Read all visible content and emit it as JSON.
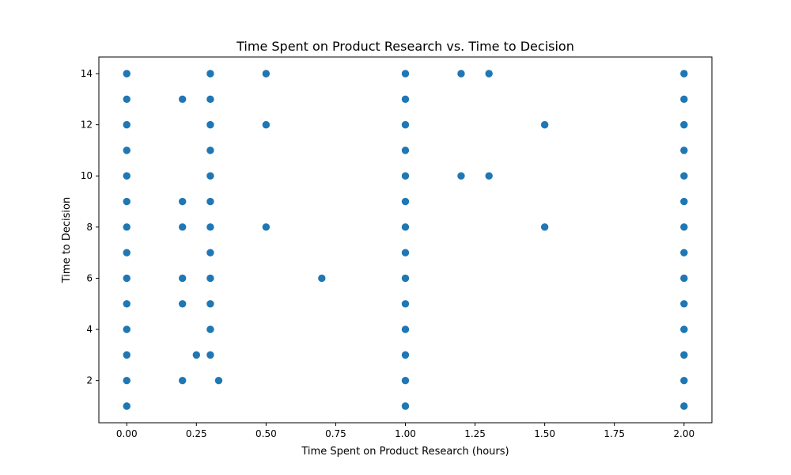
{
  "chart_data": {
    "type": "scatter",
    "title": "Time Spent on Product Research vs. Time to Decision",
    "xlabel": "Time Spent on Product Research (hours)",
    "ylabel": "Time to Decision",
    "xlim": [
      -0.1,
      2.1
    ],
    "ylim": [
      0.35,
      14.65
    ],
    "x_ticks": [
      0.0,
      0.25,
      0.5,
      0.75,
      1.0,
      1.25,
      1.5,
      1.75,
      2.0
    ],
    "x_tick_labels": [
      "0.00",
      "0.25",
      "0.50",
      "0.75",
      "1.00",
      "1.25",
      "1.50",
      "1.75",
      "2.00"
    ],
    "y_ticks": [
      2,
      4,
      6,
      8,
      10,
      12,
      14
    ],
    "y_tick_labels": [
      "2",
      "4",
      "6",
      "8",
      "10",
      "12",
      "14"
    ],
    "grid": false,
    "marker_color": "#1f77b4",
    "points": [
      [
        0,
        1
      ],
      [
        0,
        2
      ],
      [
        0,
        3
      ],
      [
        0,
        4
      ],
      [
        0,
        5
      ],
      [
        0,
        6
      ],
      [
        0,
        7
      ],
      [
        0,
        8
      ],
      [
        0,
        9
      ],
      [
        0,
        10
      ],
      [
        0,
        11
      ],
      [
        0,
        12
      ],
      [
        0,
        13
      ],
      [
        0,
        14
      ],
      [
        0.2,
        2
      ],
      [
        0.2,
        5
      ],
      [
        0.2,
        6
      ],
      [
        0.2,
        8
      ],
      [
        0.2,
        9
      ],
      [
        0.2,
        13
      ],
      [
        0.25,
        3
      ],
      [
        0.3,
        3
      ],
      [
        0.3,
        4
      ],
      [
        0.3,
        5
      ],
      [
        0.3,
        6
      ],
      [
        0.3,
        7
      ],
      [
        0.3,
        8
      ],
      [
        0.3,
        9
      ],
      [
        0.3,
        10
      ],
      [
        0.3,
        11
      ],
      [
        0.3,
        12
      ],
      [
        0.3,
        13
      ],
      [
        0.3,
        14
      ],
      [
        0.33,
        2
      ],
      [
        0.5,
        8
      ],
      [
        0.5,
        12
      ],
      [
        0.5,
        14
      ],
      [
        0.7,
        6
      ],
      [
        1,
        1
      ],
      [
        1,
        2
      ],
      [
        1,
        3
      ],
      [
        1,
        4
      ],
      [
        1,
        5
      ],
      [
        1,
        6
      ],
      [
        1,
        7
      ],
      [
        1,
        8
      ],
      [
        1,
        9
      ],
      [
        1,
        10
      ],
      [
        1,
        11
      ],
      [
        1,
        12
      ],
      [
        1,
        13
      ],
      [
        1,
        14
      ],
      [
        1.2,
        10
      ],
      [
        1.2,
        14
      ],
      [
        1.3,
        10
      ],
      [
        1.3,
        14
      ],
      [
        1.5,
        8
      ],
      [
        1.5,
        12
      ],
      [
        2,
        1
      ],
      [
        2,
        2
      ],
      [
        2,
        3
      ],
      [
        2,
        4
      ],
      [
        2,
        5
      ],
      [
        2,
        6
      ],
      [
        2,
        7
      ],
      [
        2,
        8
      ],
      [
        2,
        9
      ],
      [
        2,
        10
      ],
      [
        2,
        11
      ],
      [
        2,
        12
      ],
      [
        2,
        13
      ],
      [
        2,
        14
      ]
    ]
  }
}
